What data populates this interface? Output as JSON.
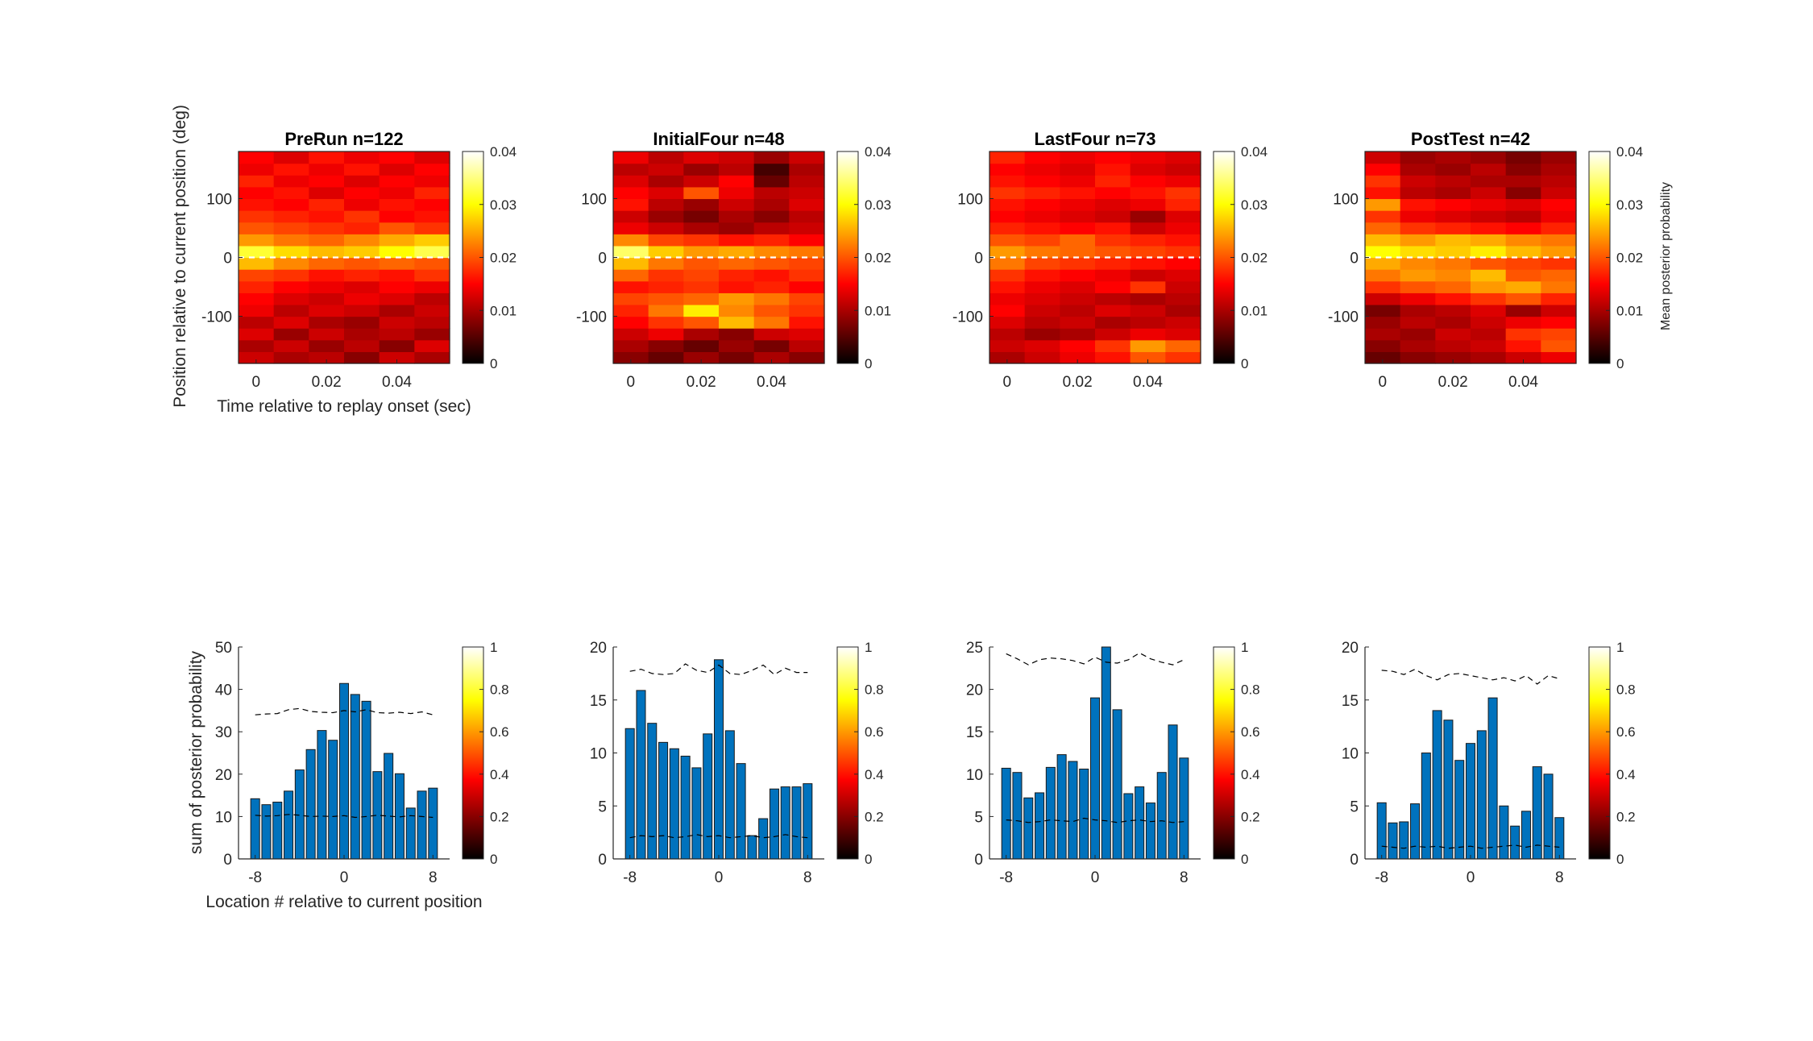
{
  "figure": {
    "heat_ylabel": "Position relative to current position (deg)",
    "heat_xlabel": "Time relative to replay onset (sec)",
    "heat_colorbar_label": "Mean posterior probability",
    "bar_ylabel": "sum of posterior probability",
    "bar_xlabel": "Location # relative to current position",
    "colors": {
      "bar": "#0072BD",
      "bar_edge": "#1a1a1a",
      "dash_line": "#000000",
      "zero_line": "#ffffff"
    }
  },
  "chart_data": [
    {
      "type": "heatmap",
      "title": "PreRun n=122",
      "colormap": "hot",
      "x_ticks": [
        "0",
        "0.02",
        "0.04"
      ],
      "y_ticks": [
        "100",
        "0",
        "-100"
      ],
      "xlim": [
        -0.005,
        0.055
      ],
      "ylim": [
        -180,
        180
      ],
      "clim": [
        0,
        0.04
      ],
      "colorbar_ticks": [
        "0.04",
        "0.03",
        "0.02",
        "0.01",
        "0"
      ],
      "x": [
        0,
        0.01,
        0.02,
        0.03,
        0.04,
        0.05
      ],
      "y": [
        -170,
        -150,
        -130,
        -110,
        -90,
        -70,
        -50,
        -30,
        -10,
        10,
        30,
        50,
        70,
        90,
        110,
        130,
        150,
        170
      ],
      "values": [
        [
          0.012,
          0.01,
          0.011,
          0.008,
          0.012,
          0.01
        ],
        [
          0.01,
          0.012,
          0.009,
          0.011,
          0.008,
          0.013
        ],
        [
          0.013,
          0.009,
          0.012,
          0.01,
          0.011,
          0.009
        ],
        [
          0.011,
          0.013,
          0.01,
          0.009,
          0.012,
          0.011
        ],
        [
          0.014,
          0.011,
          0.013,
          0.012,
          0.01,
          0.012
        ],
        [
          0.015,
          0.013,
          0.012,
          0.014,
          0.013,
          0.011
        ],
        [
          0.017,
          0.015,
          0.014,
          0.013,
          0.015,
          0.014
        ],
        [
          0.019,
          0.018,
          0.016,
          0.017,
          0.016,
          0.018
        ],
        [
          0.026,
          0.023,
          0.021,
          0.02,
          0.021,
          0.02
        ],
        [
          0.032,
          0.028,
          0.026,
          0.027,
          0.03,
          0.033
        ],
        [
          0.024,
          0.022,
          0.021,
          0.023,
          0.025,
          0.027
        ],
        [
          0.02,
          0.019,
          0.018,
          0.017,
          0.02,
          0.018
        ],
        [
          0.018,
          0.017,
          0.016,
          0.018,
          0.015,
          0.016
        ],
        [
          0.016,
          0.015,
          0.017,
          0.014,
          0.016,
          0.015
        ],
        [
          0.015,
          0.016,
          0.013,
          0.015,
          0.014,
          0.017
        ],
        [
          0.017,
          0.014,
          0.015,
          0.013,
          0.015,
          0.014
        ],
        [
          0.014,
          0.016,
          0.014,
          0.016,
          0.013,
          0.015
        ],
        [
          0.015,
          0.013,
          0.016,
          0.014,
          0.015,
          0.013
        ]
      ]
    },
    {
      "type": "heatmap",
      "title": "InitialFour n=48",
      "colormap": "hot",
      "x_ticks": [
        "0",
        "0.02",
        "0.04"
      ],
      "y_ticks": [
        "100",
        "0",
        "-100"
      ],
      "xlim": [
        -0.005,
        0.055
      ],
      "ylim": [
        -180,
        180
      ],
      "clim": [
        0,
        0.04
      ],
      "colorbar_ticks": [
        "0.04",
        "0.03",
        "0.02",
        "0.01",
        "0"
      ],
      "x": [
        0,
        0.01,
        0.02,
        0.03,
        0.04,
        0.05
      ],
      "y": [
        -170,
        -150,
        -130,
        -110,
        -90,
        -70,
        -50,
        -30,
        -10,
        10,
        30,
        50,
        70,
        90,
        110,
        130,
        150,
        170
      ],
      "values": [
        [
          0.008,
          0.006,
          0.009,
          0.007,
          0.01,
          0.008
        ],
        [
          0.01,
          0.008,
          0.006,
          0.009,
          0.007,
          0.011
        ],
        [
          0.012,
          0.014,
          0.01,
          0.008,
          0.012,
          0.013
        ],
        [
          0.015,
          0.018,
          0.02,
          0.026,
          0.022,
          0.016
        ],
        [
          0.017,
          0.022,
          0.029,
          0.023,
          0.02,
          0.018
        ],
        [
          0.019,
          0.02,
          0.021,
          0.024,
          0.022,
          0.019
        ],
        [
          0.016,
          0.017,
          0.018,
          0.016,
          0.017,
          0.015
        ],
        [
          0.021,
          0.018,
          0.019,
          0.017,
          0.016,
          0.018
        ],
        [
          0.026,
          0.022,
          0.02,
          0.021,
          0.02,
          0.019
        ],
        [
          0.034,
          0.027,
          0.024,
          0.025,
          0.023,
          0.022
        ],
        [
          0.023,
          0.019,
          0.018,
          0.016,
          0.017,
          0.015
        ],
        [
          0.014,
          0.012,
          0.01,
          0.009,
          0.011,
          0.012
        ],
        [
          0.012,
          0.009,
          0.007,
          0.01,
          0.008,
          0.011
        ],
        [
          0.016,
          0.011,
          0.009,
          0.012,
          0.01,
          0.013
        ],
        [
          0.015,
          0.013,
          0.02,
          0.014,
          0.011,
          0.012
        ],
        [
          0.013,
          0.01,
          0.012,
          0.015,
          0.006,
          0.011
        ],
        [
          0.011,
          0.012,
          0.009,
          0.011,
          0.004,
          0.01
        ],
        [
          0.014,
          0.011,
          0.013,
          0.012,
          0.009,
          0.012
        ]
      ]
    },
    {
      "type": "heatmap",
      "title": "LastFour n=73",
      "colormap": "hot",
      "x_ticks": [
        "0",
        "0.02",
        "0.04"
      ],
      "y_ticks": [
        "100",
        "0",
        "-100"
      ],
      "xlim": [
        -0.005,
        0.055
      ],
      "ylim": [
        -180,
        180
      ],
      "clim": [
        0,
        0.04
      ],
      "colorbar_ticks": [
        "0.04",
        "0.03",
        "0.02",
        "0.01",
        "0"
      ],
      "x": [
        0,
        0.01,
        0.02,
        0.03,
        0.04,
        0.05
      ],
      "y": [
        -170,
        -150,
        -130,
        -110,
        -90,
        -70,
        -50,
        -30,
        -10,
        10,
        30,
        50,
        70,
        90,
        110,
        130,
        150,
        170
      ],
      "values": [
        [
          0.01,
          0.012,
          0.014,
          0.016,
          0.02,
          0.018
        ],
        [
          0.012,
          0.013,
          0.015,
          0.018,
          0.024,
          0.021
        ],
        [
          0.011,
          0.009,
          0.01,
          0.012,
          0.014,
          0.013
        ],
        [
          0.013,
          0.011,
          0.012,
          0.01,
          0.011,
          0.012
        ],
        [
          0.015,
          0.012,
          0.011,
          0.013,
          0.012,
          0.01
        ],
        [
          0.014,
          0.013,
          0.012,
          0.011,
          0.01,
          0.011
        ],
        [
          0.016,
          0.014,
          0.013,
          0.015,
          0.018,
          0.012
        ],
        [
          0.018,
          0.016,
          0.015,
          0.014,
          0.012,
          0.013
        ],
        [
          0.022,
          0.019,
          0.018,
          0.017,
          0.016,
          0.015
        ],
        [
          0.024,
          0.022,
          0.021,
          0.02,
          0.019,
          0.018
        ],
        [
          0.02,
          0.019,
          0.021,
          0.018,
          0.017,
          0.016
        ],
        [
          0.017,
          0.016,
          0.015,
          0.016,
          0.012,
          0.014
        ],
        [
          0.015,
          0.014,
          0.013,
          0.012,
          0.009,
          0.013
        ],
        [
          0.016,
          0.015,
          0.014,
          0.013,
          0.014,
          0.017
        ],
        [
          0.018,
          0.017,
          0.016,
          0.015,
          0.016,
          0.018
        ],
        [
          0.016,
          0.015,
          0.014,
          0.017,
          0.015,
          0.014
        ],
        [
          0.015,
          0.014,
          0.013,
          0.016,
          0.013,
          0.012
        ],
        [
          0.017,
          0.015,
          0.014,
          0.015,
          0.014,
          0.013
        ]
      ]
    },
    {
      "type": "heatmap",
      "title": "PostTest n=42",
      "colormap": "hot",
      "x_ticks": [
        "0",
        "0.02",
        "0.04"
      ],
      "y_ticks": [
        "100",
        "0",
        "-100"
      ],
      "xlim": [
        -0.005,
        0.055
      ],
      "ylim": [
        -180,
        180
      ],
      "clim": [
        0,
        0.04
      ],
      "colorbar_ticks": [
        "0.04",
        "0.03",
        "0.02",
        "0.01",
        "0"
      ],
      "colorbar_label": "Mean posterior probability",
      "x": [
        0,
        0.01,
        0.02,
        0.03,
        0.04,
        0.05
      ],
      "y": [
        -170,
        -150,
        -130,
        -110,
        -90,
        -70,
        -50,
        -30,
        -10,
        10,
        30,
        50,
        70,
        90,
        110,
        130,
        150,
        170
      ],
      "values": [
        [
          0.006,
          0.008,
          0.009,
          0.01,
          0.012,
          0.014
        ],
        [
          0.008,
          0.01,
          0.011,
          0.012,
          0.016,
          0.02
        ],
        [
          0.01,
          0.009,
          0.012,
          0.011,
          0.018,
          0.019
        ],
        [
          0.009,
          0.011,
          0.01,
          0.012,
          0.014,
          0.015
        ],
        [
          0.007,
          0.01,
          0.011,
          0.013,
          0.009,
          0.012
        ],
        [
          0.012,
          0.014,
          0.016,
          0.018,
          0.02,
          0.017
        ],
        [
          0.018,
          0.02,
          0.021,
          0.024,
          0.025,
          0.022
        ],
        [
          0.022,
          0.024,
          0.023,
          0.026,
          0.02,
          0.021
        ],
        [
          0.025,
          0.023,
          0.022,
          0.02,
          0.019,
          0.018
        ],
        [
          0.03,
          0.028,
          0.027,
          0.029,
          0.026,
          0.024
        ],
        [
          0.026,
          0.024,
          0.026,
          0.025,
          0.023,
          0.022
        ],
        [
          0.021,
          0.018,
          0.017,
          0.016,
          0.015,
          0.017
        ],
        [
          0.018,
          0.014,
          0.013,
          0.012,
          0.011,
          0.014
        ],
        [
          0.024,
          0.016,
          0.015,
          0.014,
          0.013,
          0.015
        ],
        [
          0.016,
          0.011,
          0.01,
          0.012,
          0.008,
          0.012
        ],
        [
          0.018,
          0.012,
          0.011,
          0.01,
          0.01,
          0.011
        ],
        [
          0.015,
          0.01,
          0.009,
          0.011,
          0.008,
          0.01
        ],
        [
          0.012,
          0.009,
          0.01,
          0.009,
          0.007,
          0.009
        ]
      ]
    },
    {
      "type": "bar",
      "xlabel": "Location # relative to current position",
      "ylabel": "sum of posterior probability",
      "x": [
        -8,
        -7,
        -6,
        -5,
        -4,
        -3,
        -2,
        -1,
        0,
        1,
        2,
        3,
        4,
        5,
        6,
        7,
        8
      ],
      "values": [
        14.2,
        12.8,
        13.4,
        16.0,
        21.0,
        25.8,
        30.3,
        28.0,
        41.4,
        38.8,
        37.2,
        20.6,
        24.9,
        20.1,
        12.0,
        16.0,
        16.7
      ],
      "upper_dashed": [
        34.0,
        34.2,
        34.3,
        35.2,
        35.5,
        34.8,
        34.6,
        34.5,
        35.0,
        34.7,
        35.2,
        34.5,
        34.4,
        34.6,
        34.3,
        34.7,
        34.0
      ],
      "lower_dashed": [
        10.3,
        10.1,
        10.2,
        10.5,
        10.3,
        10.0,
        10.1,
        10.0,
        10.2,
        9.8,
        10.0,
        10.3,
        10.1,
        9.9,
        10.2,
        10.0,
        9.8
      ],
      "xlim": [
        -9.5,
        9.5
      ],
      "ylim": [
        0,
        50
      ],
      "x_ticks": [
        "-8",
        "0",
        "8"
      ],
      "y_ticks": [
        "50",
        "40",
        "30",
        "20",
        "10",
        "0"
      ],
      "clim": [
        0,
        1
      ],
      "colorbar_ticks": [
        "1",
        "0.8",
        "0.6",
        "0.4",
        "0.2",
        "0"
      ]
    },
    {
      "type": "bar",
      "x": [
        -8,
        -7,
        -6,
        -5,
        -4,
        -3,
        -2,
        -1,
        0,
        1,
        2,
        3,
        4,
        5,
        6,
        7,
        8
      ],
      "values": [
        12.3,
        15.9,
        12.8,
        11.0,
        10.4,
        9.7,
        8.6,
        11.8,
        18.8,
        12.1,
        9.0,
        2.2,
        3.8,
        6.6,
        6.8,
        6.8,
        7.1
      ],
      "upper_dashed": [
        17.7,
        17.9,
        17.5,
        17.4,
        17.5,
        18.4,
        17.8,
        17.6,
        18.3,
        17.5,
        17.4,
        17.8,
        18.3,
        17.4,
        18.0,
        17.6,
        17.6
      ],
      "lower_dashed": [
        2.0,
        2.2,
        2.1,
        2.2,
        2.0,
        2.1,
        2.3,
        2.1,
        2.2,
        2.0,
        2.1,
        2.2,
        2.0,
        2.1,
        2.3,
        2.1,
        2.0
      ],
      "xlim": [
        -9.5,
        9.5
      ],
      "ylim": [
        0,
        20
      ],
      "x_ticks": [
        "-8",
        "0",
        "8"
      ],
      "y_ticks": [
        "20",
        "15",
        "10",
        "5",
        "0"
      ],
      "clim": [
        0,
        1
      ],
      "colorbar_ticks": [
        "1",
        "0.8",
        "0.6",
        "0.4",
        "0.2",
        "0"
      ]
    },
    {
      "type": "bar",
      "x": [
        -8,
        -7,
        -6,
        -5,
        -4,
        -3,
        -2,
        -1,
        0,
        1,
        2,
        3,
        4,
        5,
        6,
        7,
        8
      ],
      "values": [
        10.7,
        10.2,
        7.2,
        7.8,
        10.8,
        12.3,
        11.5,
        10.6,
        19.0,
        25.0,
        17.6,
        7.7,
        8.5,
        6.6,
        10.2,
        15.8,
        11.9
      ],
      "upper_dashed": [
        24.2,
        23.6,
        22.9,
        23.5,
        23.7,
        23.6,
        23.4,
        23.0,
        23.8,
        23.2,
        23.1,
        23.5,
        24.3,
        23.6,
        23.2,
        22.9,
        23.5
      ],
      "lower_dashed": [
        4.6,
        4.5,
        4.3,
        4.4,
        4.6,
        4.5,
        4.4,
        4.8,
        4.6,
        4.5,
        4.3,
        4.5,
        4.6,
        4.4,
        4.5,
        4.3,
        4.4
      ],
      "xlim": [
        -9.5,
        9.5
      ],
      "ylim": [
        0,
        25
      ],
      "x_ticks": [
        "-8",
        "0",
        "8"
      ],
      "y_ticks": [
        "25",
        "20",
        "15",
        "10",
        "5",
        "0"
      ],
      "clim": [
        0,
        1
      ],
      "colorbar_ticks": [
        "1",
        "0.8",
        "0.6",
        "0.4",
        "0.2",
        "0"
      ]
    },
    {
      "type": "bar",
      "x": [
        -8,
        -7,
        -6,
        -5,
        -4,
        -3,
        -2,
        -1,
        0,
        1,
        2,
        3,
        4,
        5,
        6,
        7,
        8
      ],
      "values": [
        5.3,
        3.4,
        3.5,
        5.2,
        10.0,
        14.0,
        13.1,
        9.3,
        10.9,
        12.1,
        15.2,
        5.0,
        3.1,
        4.5,
        8.7,
        8.0,
        3.9
      ],
      "upper_dashed": [
        17.8,
        17.7,
        17.4,
        17.9,
        17.3,
        16.9,
        17.4,
        17.5,
        17.3,
        17.1,
        16.9,
        17.1,
        16.8,
        17.3,
        16.5,
        17.3,
        17.0
      ],
      "lower_dashed": [
        1.2,
        1.1,
        1.0,
        1.2,
        1.1,
        1.2,
        1.0,
        1.1,
        1.2,
        1.0,
        1.1,
        1.2,
        1.3,
        1.1,
        1.3,
        1.2,
        1.1
      ],
      "xlim": [
        -9.5,
        9.5
      ],
      "ylim": [
        0,
        20
      ],
      "x_ticks": [
        "-8",
        "0",
        "8"
      ],
      "y_ticks": [
        "20",
        "15",
        "10",
        "5",
        "0"
      ],
      "clim": [
        0,
        1
      ],
      "colorbar_ticks": [
        "1",
        "0.8",
        "0.6",
        "0.4",
        "0.2",
        "0"
      ]
    }
  ]
}
